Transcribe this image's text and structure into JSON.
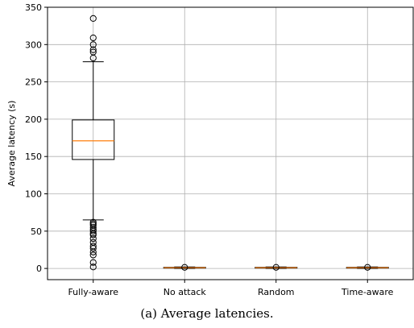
{
  "chart_data": {
    "type": "box",
    "ylabel": "Average latency (s)",
    "ylim": [
      -15,
      350
    ],
    "yticks": [
      0,
      50,
      100,
      150,
      200,
      250,
      300,
      350
    ],
    "grid": true,
    "categories": [
      "Fully-aware",
      "No attack",
      "Random",
      "Time-aware"
    ],
    "boxes": [
      {
        "name": "Fully-aware",
        "whisker_low": 65,
        "q1": 146,
        "median": 171,
        "q3": 199,
        "whisker_high": 277,
        "outliers_low": [
          62,
          60,
          58,
          55,
          52,
          50,
          47,
          45,
          40,
          35,
          30,
          27,
          22,
          18,
          8,
          2
        ],
        "outliers_high": [
          282,
          290,
          293,
          300,
          309,
          335
        ]
      },
      {
        "name": "No attack",
        "whisker_low": 0,
        "q1": 0.5,
        "median": 1,
        "q3": 1.5,
        "whisker_high": 2,
        "outliers_low": [],
        "outliers_high": [
          1.5
        ]
      },
      {
        "name": "Random",
        "whisker_low": 0,
        "q1": 0.5,
        "median": 1,
        "q3": 1.5,
        "whisker_high": 2,
        "outliers_low": [],
        "outliers_high": [
          1.5
        ]
      },
      {
        "name": "Time-aware",
        "whisker_low": 0,
        "q1": 0.5,
        "median": 1,
        "q3": 1.5,
        "whisker_high": 2,
        "outliers_low": [],
        "outliers_high": [
          1.5
        ]
      }
    ],
    "colors": {
      "box": "#000000",
      "median": "#ff7f0e",
      "grid": "#b0b0b0"
    }
  },
  "caption": "(a) Average latencies."
}
